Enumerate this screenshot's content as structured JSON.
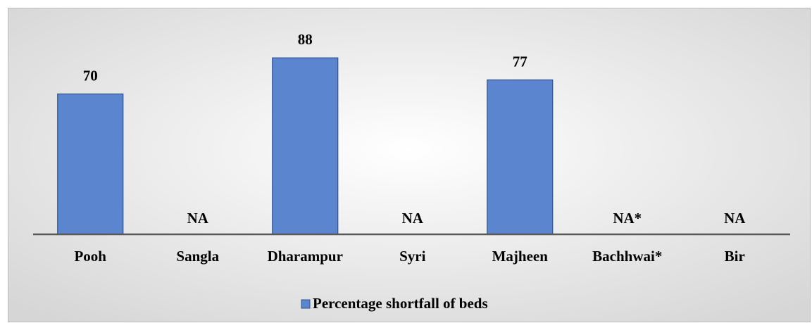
{
  "chart_data": {
    "type": "bar",
    "categories": [
      "Pooh",
      "Sangla",
      "Dharampur",
      "Syri",
      "Majheen",
      "Bachhwai*",
      "Bir"
    ],
    "series": [
      {
        "name": "Percentage shortfall of beds",
        "color": "#5b86cf",
        "values": [
          70,
          null,
          88,
          null,
          77,
          null,
          null
        ],
        "value_labels": [
          "70",
          "NA",
          "88",
          "NA",
          "77",
          "NA*",
          "NA"
        ]
      }
    ],
    "ylim": [
      0,
      100
    ],
    "legend": "bottom"
  }
}
